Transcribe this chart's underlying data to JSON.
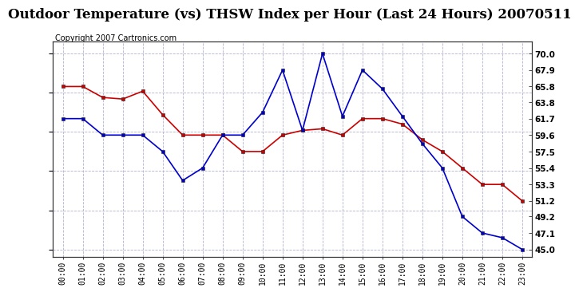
{
  "title": "Outdoor Temperature (vs) THSW Index per Hour (Last 24 Hours) 20070511",
  "copyright": "Copyright 2007 Cartronics.com",
  "hours": [
    "00:00",
    "01:00",
    "02:00",
    "03:00",
    "04:00",
    "05:00",
    "06:00",
    "07:00",
    "08:00",
    "09:00",
    "10:00",
    "11:00",
    "12:00",
    "13:00",
    "14:00",
    "15:00",
    "16:00",
    "17:00",
    "18:00",
    "19:00",
    "20:00",
    "21:00",
    "22:00",
    "23:00"
  ],
  "temp_red": [
    65.8,
    65.8,
    64.4,
    64.2,
    65.2,
    62.2,
    59.6,
    59.6,
    59.6,
    57.5,
    57.5,
    59.6,
    60.2,
    60.4,
    59.6,
    61.7,
    61.7,
    61.0,
    59.0,
    57.5,
    55.4,
    53.3,
    53.3,
    51.2
  ],
  "thsw_blue": [
    61.7,
    61.7,
    59.6,
    59.6,
    59.6,
    57.5,
    53.8,
    55.4,
    59.6,
    59.6,
    62.5,
    67.9,
    60.2,
    70.0,
    62.0,
    67.9,
    65.5,
    62.0,
    58.5,
    55.4,
    49.2,
    47.1,
    46.5,
    45.0
  ],
  "ylim_min": 44.0,
  "ylim_max": 71.5,
  "yticks": [
    45.0,
    47.1,
    49.2,
    51.2,
    53.3,
    55.4,
    57.5,
    59.6,
    61.7,
    63.8,
    65.8,
    67.9,
    70.0
  ],
  "red_color": "#cc0000",
  "blue_color": "#0000cc",
  "bg_color": "#ffffff",
  "grid_color": "#aaaacc",
  "title_fontsize": 12,
  "copyright_fontsize": 7,
  "tick_fontsize": 7.5,
  "xlabel_fontsize": 7
}
